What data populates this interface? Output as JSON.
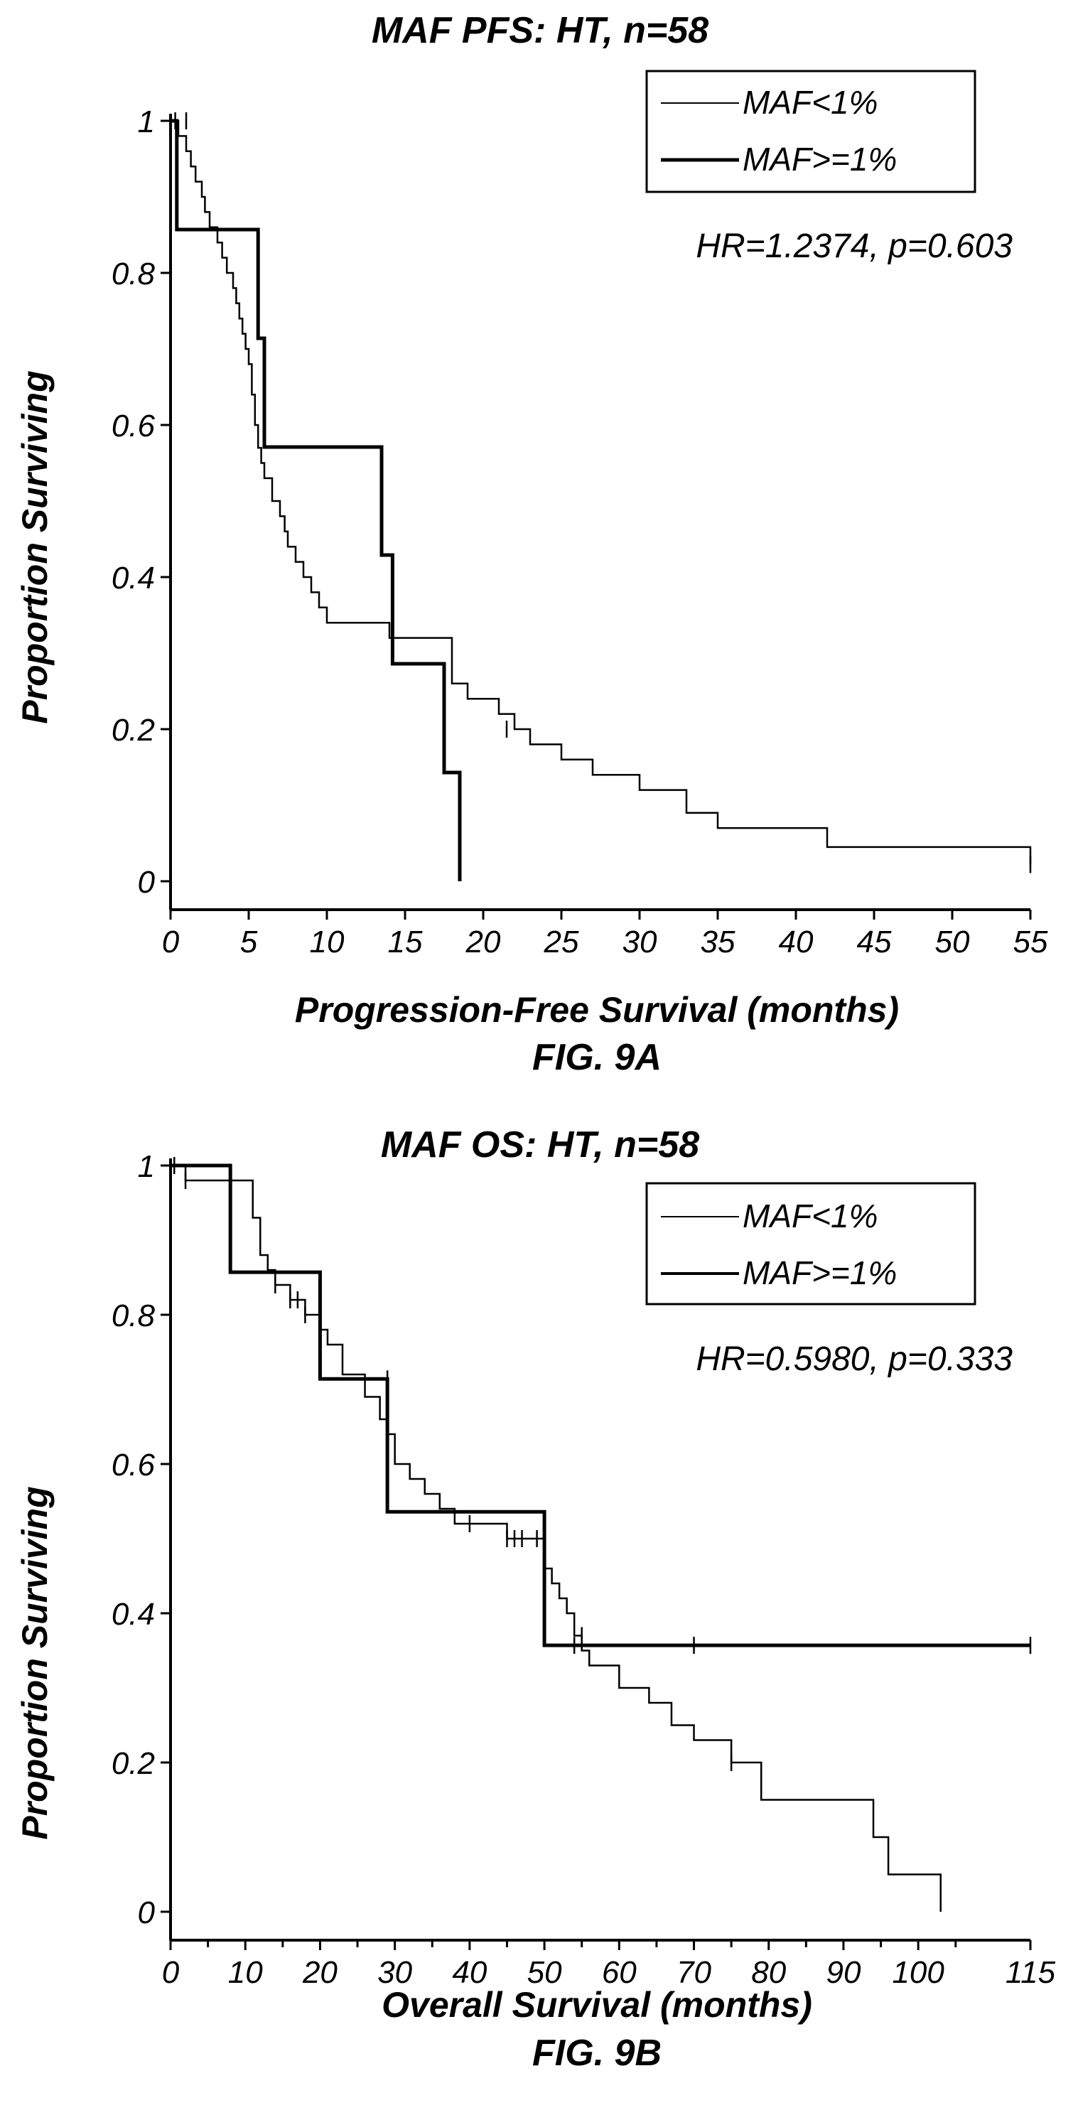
{
  "chart_data": [
    {
      "type": "line",
      "title": "MAF PFS: HT, n=58",
      "caption": "FIG. 9A",
      "xlabel": "Progression-Free Survival (months)",
      "ylabel": "Proportion Surviving",
      "xlim": [
        0,
        55
      ],
      "ylim": [
        0,
        1
      ],
      "xticks": [
        "0",
        "5",
        "10",
        "15",
        "20",
        "25",
        "30",
        "35",
        "40",
        "45",
        "50",
        "55"
      ],
      "yticks": [
        "0",
        "0.2",
        "0.4",
        "0.6",
        "0.8",
        "1"
      ],
      "legend_position": "top-right",
      "annotation": "HR=1.2374, p=0.603",
      "series": [
        {
          "name": "MAF<1%",
          "style": "thin",
          "x": [
            0,
            0.5,
            1,
            1.3,
            1.6,
            2,
            2.2,
            2.5,
            3,
            3.3,
            3.6,
            4,
            4.2,
            4.4,
            4.6,
            4.8,
            5,
            5.2,
            5.4,
            5.6,
            5.8,
            6,
            6.5,
            7,
            7.3,
            7.5,
            8,
            8.5,
            9,
            9.5,
            10,
            11,
            13,
            14,
            16,
            18,
            19,
            20,
            21,
            22,
            23,
            25,
            27,
            30,
            33,
            35,
            42,
            48.5,
            55
          ],
          "y": [
            1,
            0.98,
            0.96,
            0.94,
            0.92,
            0.9,
            0.88,
            0.86,
            0.84,
            0.82,
            0.8,
            0.78,
            0.76,
            0.74,
            0.72,
            0.7,
            0.68,
            0.64,
            0.6,
            0.57,
            0.55,
            0.53,
            0.5,
            0.48,
            0.46,
            0.44,
            0.42,
            0.4,
            0.38,
            0.36,
            0.34,
            0.34,
            0.34,
            0.32,
            0.32,
            0.26,
            0.24,
            0.24,
            0.22,
            0.2,
            0.18,
            0.16,
            0.14,
            0.12,
            0.09,
            0.07,
            0.045,
            0.045,
            0.022
          ],
          "censor_x": [
            0.3,
            1,
            21.5,
            55
          ],
          "censor_y": [
            1,
            1,
            0.2,
            0.022
          ]
        },
        {
          "name": "MAF>=1%",
          "style": "thick",
          "x": [
            0,
            0.4,
            5.1,
            5.6,
            6,
            12.5,
            13.5,
            14.2,
            14.8,
            17.5,
            18.5
          ],
          "y": [
            1,
            0.857,
            0.857,
            0.714,
            0.571,
            0.571,
            0.429,
            0.286,
            0.286,
            0.143,
            0.0
          ],
          "censor_x": [],
          "censor_y": []
        }
      ]
    },
    {
      "type": "line",
      "title": "MAF OS: HT, n=58",
      "caption": "FIG. 9B",
      "xlabel": "Overall Survival (months)",
      "ylabel": "Proportion Surviving",
      "xlim": [
        0,
        115
      ],
      "ylim": [
        0,
        1
      ],
      "xticks": [
        "0",
        "10",
        "20",
        "30",
        "40",
        "50",
        "60",
        "70",
        "80",
        "90",
        "100",
        "115"
      ],
      "yticks": [
        "0",
        "0.2",
        "0.4",
        "0.6",
        "0.8",
        "1"
      ],
      "legend_position": "top-right",
      "annotation": "HR=0.5980, p=0.333",
      "series": [
        {
          "name": "MAF<1%",
          "style": "thin",
          "x": [
            0,
            2,
            8,
            11,
            12,
            13,
            14,
            16,
            18,
            20,
            21,
            23,
            26,
            28,
            29,
            30,
            32,
            34,
            36,
            38,
            45,
            49,
            50,
            51,
            52,
            53,
            54,
            55,
            56,
            60,
            64,
            67,
            70,
            75,
            79,
            90,
            94,
            96,
            103
          ],
          "y": [
            1,
            0.98,
            0.98,
            0.93,
            0.88,
            0.86,
            0.84,
            0.82,
            0.8,
            0.78,
            0.76,
            0.72,
            0.69,
            0.66,
            0.64,
            0.6,
            0.58,
            0.56,
            0.54,
            0.52,
            0.5,
            0.5,
            0.46,
            0.44,
            0.42,
            0.4,
            0.37,
            0.35,
            0.33,
            0.3,
            0.28,
            0.25,
            0.23,
            0.2,
            0.15,
            0.15,
            0.1,
            0.05,
            0.0
          ],
          "censor_x": [
            0.5,
            2,
            14,
            16,
            17,
            18,
            40,
            45,
            46,
            47,
            49,
            50,
            55,
            75
          ],
          "censor_y": [
            1,
            0.98,
            0.84,
            0.82,
            0.82,
            0.8,
            0.52,
            0.5,
            0.5,
            0.5,
            0.5,
            0.44,
            0.37,
            0.2
          ]
        },
        {
          "name": "MAF>=1%",
          "style": "thick",
          "x": [
            0,
            8,
            19,
            20,
            28,
            29,
            49,
            50,
            115
          ],
          "y": [
            1,
            0.857,
            0.857,
            0.714,
            0.714,
            0.536,
            0.536,
            0.357,
            0.357
          ],
          "censor_x": [
            29,
            50,
            54,
            70,
            115
          ],
          "censor_y": [
            0.714,
            0.43,
            0.357,
            0.357,
            0.357
          ]
        }
      ]
    }
  ]
}
